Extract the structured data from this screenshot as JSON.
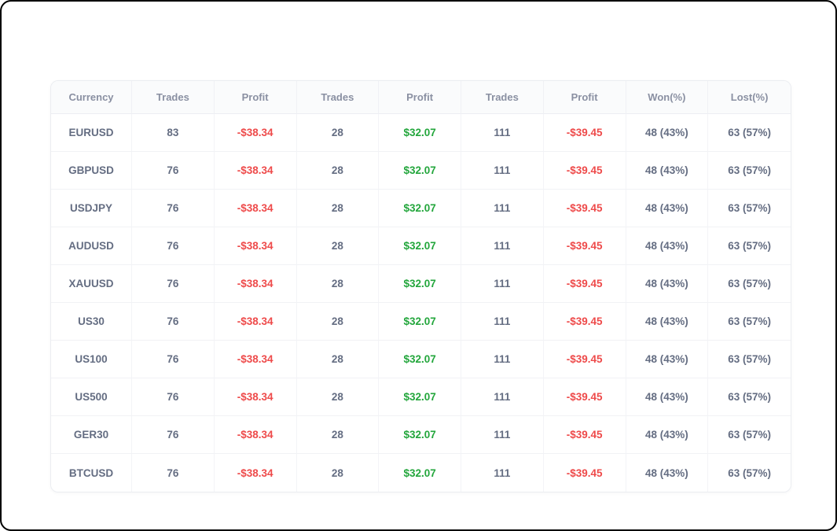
{
  "page": {
    "frame_border_color": "#000000",
    "background_color": "#ffffff"
  },
  "table": {
    "columns": [
      {
        "label": "Currency"
      },
      {
        "label": "Trades"
      },
      {
        "label": "Profit"
      },
      {
        "label": "Trades"
      },
      {
        "label": "Profit"
      },
      {
        "label": "Trades"
      },
      {
        "label": "Profit"
      },
      {
        "label": "Won(%)"
      },
      {
        "label": "Lost(%)"
      }
    ],
    "rows": [
      {
        "cells": [
          "EURUSD",
          "83",
          "-$38.34",
          "28",
          "$32.07",
          "111",
          "-$39.45",
          "48 (43%)",
          "63 (57%)"
        ]
      },
      {
        "cells": [
          "GBPUSD",
          "76",
          "-$38.34",
          "28",
          "$32.07",
          "111",
          "-$39.45",
          "48 (43%)",
          "63 (57%)"
        ]
      },
      {
        "cells": [
          "USDJPY",
          "76",
          "-$38.34",
          "28",
          "$32.07",
          "111",
          "-$39.45",
          "48 (43%)",
          "63 (57%)"
        ]
      },
      {
        "cells": [
          "AUDUSD",
          "76",
          "-$38.34",
          "28",
          "$32.07",
          "111",
          "-$39.45",
          "48 (43%)",
          "63 (57%)"
        ]
      },
      {
        "cells": [
          "XAUUSD",
          "76",
          "-$38.34",
          "28",
          "$32.07",
          "111",
          "-$39.45",
          "48 (43%)",
          "63 (57%)"
        ]
      },
      {
        "cells": [
          "US30",
          "76",
          "-$38.34",
          "28",
          "$32.07",
          "111",
          "-$39.45",
          "48 (43%)",
          "63 (57%)"
        ]
      },
      {
        "cells": [
          "US100",
          "76",
          "-$38.34",
          "28",
          "$32.07",
          "111",
          "-$39.45",
          "48 (43%)",
          "63 (57%)"
        ]
      },
      {
        "cells": [
          "US500",
          "76",
          "-$38.34",
          "28",
          "$32.07",
          "111",
          "-$39.45",
          "48 (43%)",
          "63 (57%)"
        ]
      },
      {
        "cells": [
          "GER30",
          "76",
          "-$38.34",
          "28",
          "$32.07",
          "111",
          "-$39.45",
          "48 (43%)",
          "63 (57%)"
        ]
      },
      {
        "cells": [
          "BTCUSD",
          "76",
          "-$38.34",
          "28",
          "$32.07",
          "111",
          "-$39.45",
          "48 (43%)",
          "63 (57%)"
        ]
      }
    ],
    "colors": {
      "loss": "#ee4a4a",
      "gain": "#23a63c",
      "header_text": "#8a90a2",
      "cell_text": "#646d82",
      "header_background": "#fafbfc"
    }
  }
}
